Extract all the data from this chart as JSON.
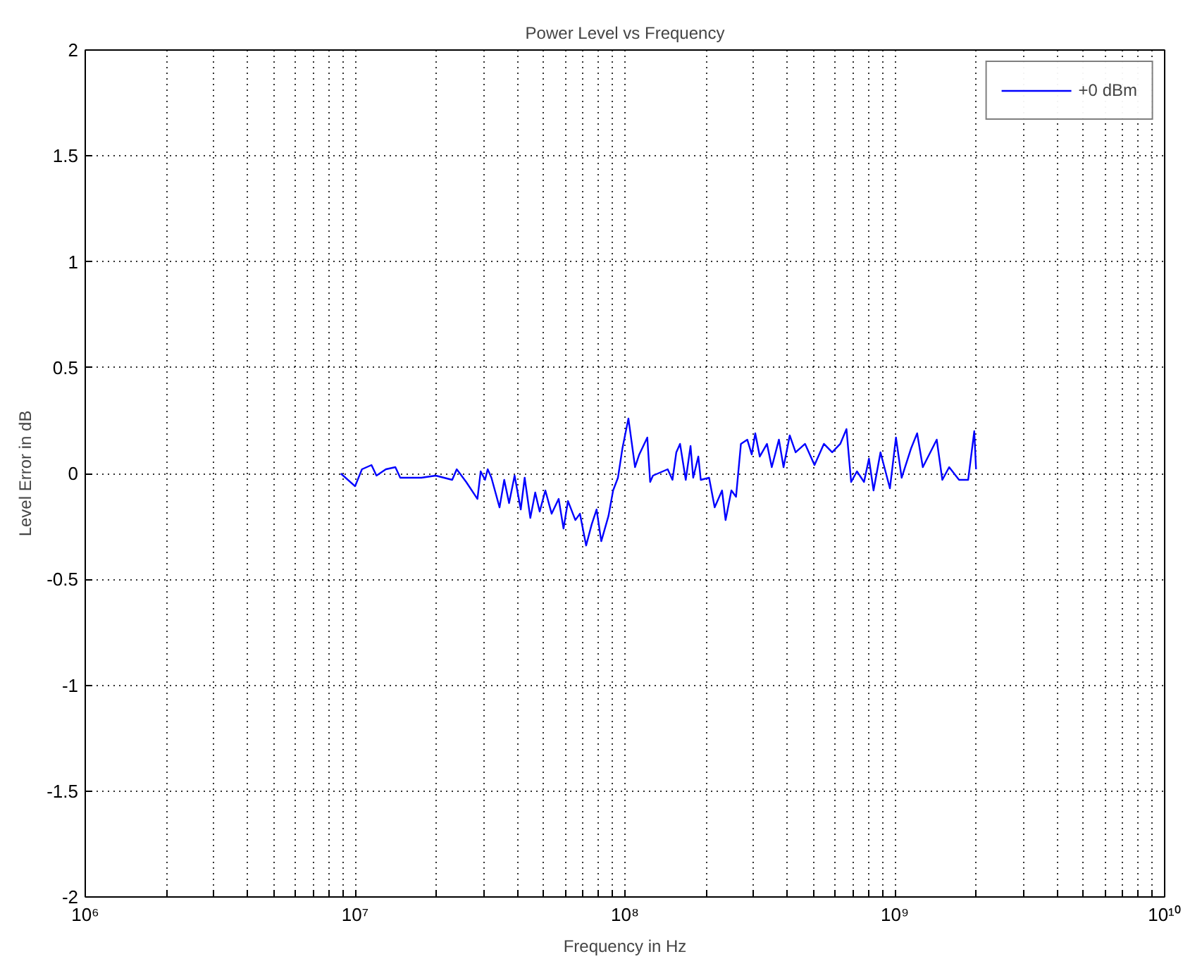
{
  "chart_data": {
    "type": "line",
    "title": "Power Level vs Frequency",
    "xlabel": "Frequency in Hz",
    "ylabel": "Level Error in dB",
    "log": "x",
    "grid": true,
    "legend": "top right",
    "line_style": "solid",
    "marker": "none",
    "xlim": [
      1000000,
      10000000000
    ],
    "ylim": [
      -2,
      2
    ],
    "xticks": [
      {
        "value": 1000000,
        "label": "10⁶"
      },
      {
        "value": 2000000,
        "label": null
      },
      {
        "value": 3000000,
        "label": null
      },
      {
        "value": 4000000,
        "label": null
      },
      {
        "value": 5000000,
        "label": null
      },
      {
        "value": 6000000,
        "label": null
      },
      {
        "value": 7000000,
        "label": null
      },
      {
        "value": 8000000,
        "label": null
      },
      {
        "value": 9000000,
        "label": null
      },
      {
        "value": 10000000,
        "label": "10⁷"
      },
      {
        "value": 20000000,
        "label": null
      },
      {
        "value": 30000000,
        "label": null
      },
      {
        "value": 40000000,
        "label": null
      },
      {
        "value": 50000000,
        "label": null
      },
      {
        "value": 60000000,
        "label": null
      },
      {
        "value": 70000000,
        "label": null
      },
      {
        "value": 80000000,
        "label": null
      },
      {
        "value": 90000000,
        "label": null
      },
      {
        "value": 100000000,
        "label": "10⁸"
      },
      {
        "value": 200000000,
        "label": null
      },
      {
        "value": 300000000,
        "label": null
      },
      {
        "value": 400000000,
        "label": null
      },
      {
        "value": 500000000,
        "label": null
      },
      {
        "value": 600000000,
        "label": null
      },
      {
        "value": 700000000,
        "label": null
      },
      {
        "value": 800000000,
        "label": null
      },
      {
        "value": 900000000,
        "label": null
      },
      {
        "value": 1000000000,
        "label": "10⁹"
      },
      {
        "value": 2000000000,
        "label": null
      },
      {
        "value": 3000000000,
        "label": null
      },
      {
        "value": 4000000000,
        "label": null
      },
      {
        "value": 5000000000,
        "label": null
      },
      {
        "value": 6000000000,
        "label": null
      },
      {
        "value": 7000000000,
        "label": null
      },
      {
        "value": 8000000000,
        "label": null
      },
      {
        "value": 9000000000,
        "label": null
      },
      {
        "value": 10000000000,
        "label": "10¹⁰"
      }
    ],
    "yticks": [
      -2,
      -1.5,
      -1,
      -0.5,
      0,
      0.5,
      1,
      1.5,
      2
    ],
    "series": [
      {
        "name": "+0 dBm",
        "color": "#0000ff",
        "x": [
          8850000.0,
          10000000.0,
          10600000.0,
          11500000.0,
          12000000.0,
          13000000.0,
          14100000.0,
          14700000.0,
          17600000.0,
          19900000.0,
          22900000.0,
          23800000.0,
          25800000.0,
          28400000.0,
          29200000.0,
          30300000.0,
          31000000.0,
          32000000.0,
          34300000.0,
          35700000.0,
          37200000.0,
          39000000.0,
          41100000.0,
          42500000.0,
          44600000.0,
          46500000.0,
          48300000.0,
          50700000.0,
          53500000.0,
          56800000.0,
          59200000.0,
          61500000.0,
          65500000.0,
          68100000.0,
          71800000.0,
          75300000.0,
          78500000.0,
          81700000.0,
          86900000.0,
          90400000.0,
          94200000.0,
          97900000.0,
          103000000.0,
          109000000.0,
          113000000.0,
          121000000.0,
          124000000.0,
          127000000.0,
          144000000.0,
          150000000.0,
          155000000.0,
          160000000.0,
          168000000.0,
          175000000.0,
          179000000.0,
          187000000.0,
          191000000.0,
          205000000.0,
          215000000.0,
          229000000.0,
          236000000.0,
          248000000.0,
          258000000.0,
          269000000.0,
          284000000.0,
          295000000.0,
          304000000.0,
          316000000.0,
          336000000.0,
          350000000.0,
          372000000.0,
          387000000.0,
          408000000.0,
          429000000.0,
          465000000.0,
          504000000.0,
          546000000.0,
          586000000.0,
          628000000.0,
          662000000.0,
          689000000.0,
          724000000.0,
          769000000.0,
          802000000.0,
          834000000.0,
          885000000.0,
          959000000.0,
          1010000000.0,
          1060000000.0,
          1150000000.0,
          1210000000.0,
          1270000000.0,
          1430000000.0,
          1500000000.0,
          1590000000.0,
          1730000000.0,
          1870000000.0,
          1970000000.0,
          2000000000.0
        ],
        "values": [
          0.0,
          -0.06,
          0.02,
          0.04,
          -0.01,
          0.02,
          0.03,
          -0.02,
          -0.02,
          -0.01,
          -0.03,
          0.02,
          -0.04,
          -0.12,
          0.01,
          -0.03,
          0.02,
          -0.02,
          -0.16,
          -0.03,
          -0.14,
          -0.01,
          -0.17,
          -0.02,
          -0.21,
          -0.09,
          -0.18,
          -0.08,
          -0.19,
          -0.12,
          -0.26,
          -0.13,
          -0.22,
          -0.19,
          -0.34,
          -0.24,
          -0.17,
          -0.32,
          -0.2,
          -0.08,
          -0.02,
          0.12,
          0.26,
          0.03,
          0.09,
          0.17,
          -0.04,
          -0.01,
          0.02,
          -0.03,
          0.1,
          0.14,
          -0.03,
          0.13,
          -0.02,
          0.08,
          -0.03,
          -0.02,
          -0.16,
          -0.08,
          -0.22,
          -0.08,
          -0.11,
          0.14,
          0.16,
          0.09,
          0.19,
          0.08,
          0.14,
          0.03,
          0.16,
          0.03,
          0.18,
          0.1,
          0.14,
          0.04,
          0.14,
          0.1,
          0.14,
          0.21,
          -0.04,
          0.01,
          -0.04,
          0.07,
          -0.08,
          0.1,
          -0.07,
          0.17,
          -0.02,
          0.12,
          0.19,
          0.03,
          0.16,
          -0.03,
          0.03,
          -0.03,
          -0.03,
          0.2,
          0.02
        ]
      }
    ]
  }
}
